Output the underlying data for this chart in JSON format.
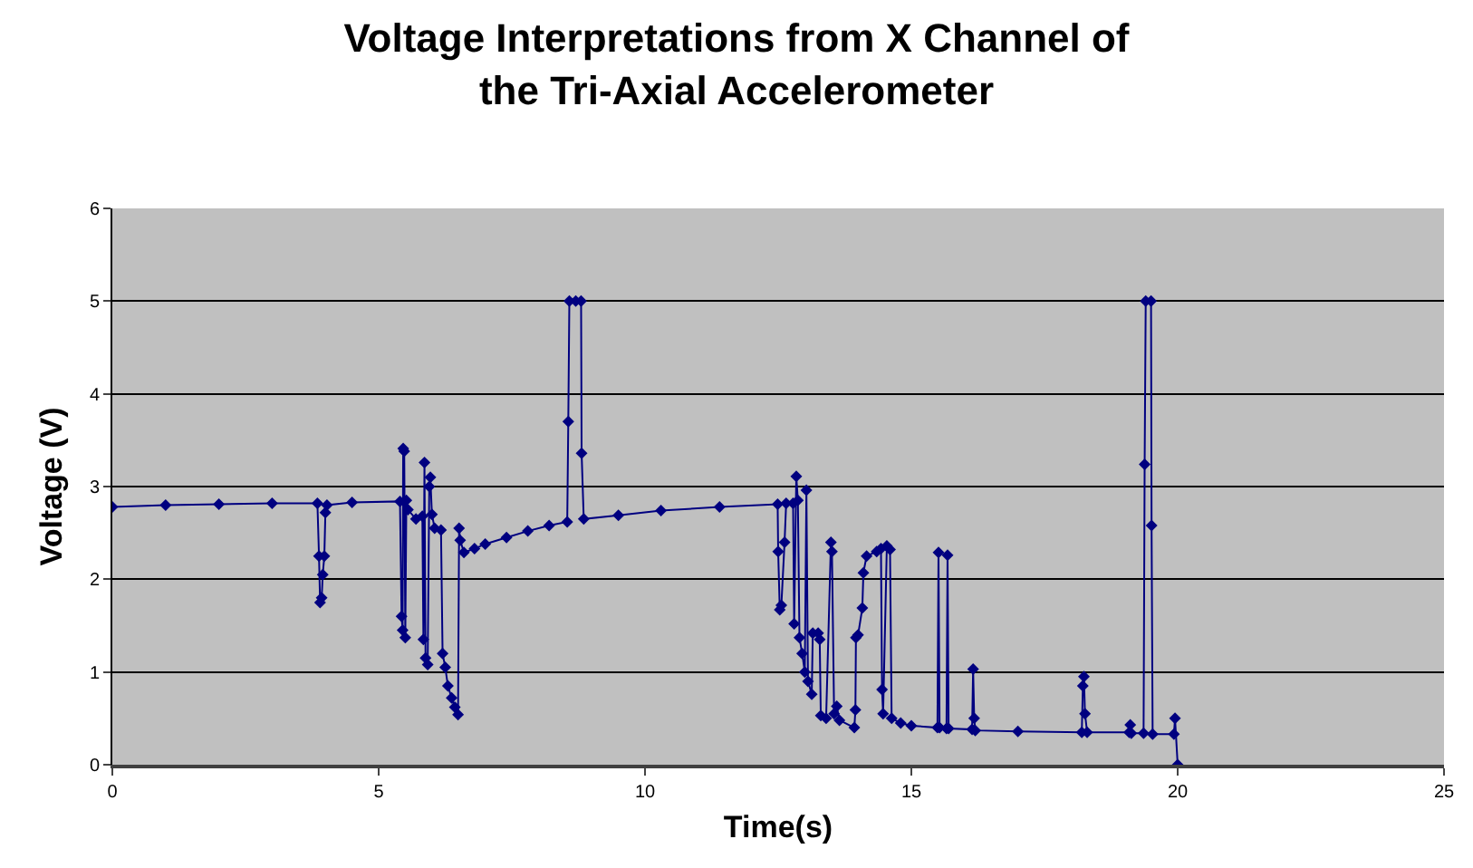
{
  "chart_data": {
    "type": "line",
    "title": "Voltage Interpretations from X Channel of\nthe Tri-Axial Accelerometer",
    "xlabel": "Time(s)",
    "ylabel": "Voltage (V)",
    "x": [
      0,
      1,
      2,
      3,
      3.85,
      3.88,
      3.9,
      3.93,
      3.95,
      3.98,
      4.0,
      4.03,
      4.5,
      5.4,
      5.43,
      5.45,
      5.46,
      5.48,
      5.5,
      5.52,
      5.55,
      5.7,
      5.82,
      5.84,
      5.86,
      5.88,
      5.92,
      5.95,
      5.97,
      6.0,
      6.05,
      6.17,
      6.2,
      6.25,
      6.3,
      6.37,
      6.43,
      6.49,
      6.51,
      6.53,
      6.6,
      6.8,
      7.0,
      7.4,
      7.8,
      8.2,
      8.54,
      8.56,
      8.58,
      8.7,
      8.8,
      8.81,
      8.85,
      9.5,
      10.3,
      11.4,
      12.49,
      12.5,
      12.53,
      12.56,
      12.62,
      12.65,
      12.78,
      12.8,
      12.84,
      12.87,
      12.9,
      12.95,
      13.0,
      13.03,
      13.06,
      13.13,
      13.15,
      13.25,
      13.28,
      13.3,
      13.4,
      13.49,
      13.51,
      13.55,
      13.6,
      13.65,
      13.93,
      13.95,
      13.96,
      14.0,
      14.08,
      14.1,
      14.16,
      14.35,
      14.43,
      14.45,
      14.47,
      14.54,
      14.6,
      14.63,
      14.8,
      15.0,
      15.49,
      15.51,
      15.53,
      15.66,
      15.68,
      15.7,
      16.14,
      16.16,
      16.18,
      16.2,
      17,
      18.2,
      18.22,
      18.24,
      18.26,
      18.3,
      19.09,
      19.11,
      19.13,
      19.36,
      19.38,
      19.4,
      19.5,
      19.51,
      19.53,
      19.93,
      19.95,
      20.0
    ],
    "series": [
      {
        "color": "#000080",
        "values": [
          2.78,
          2.8,
          2.81,
          2.82,
          2.82,
          2.25,
          1.75,
          1.8,
          2.05,
          2.25,
          2.72,
          2.8,
          2.83,
          2.84,
          1.6,
          1.45,
          3.41,
          3.38,
          1.37,
          2.85,
          2.75,
          2.65,
          2.68,
          1.35,
          3.26,
          1.15,
          1.08,
          3.0,
          3.1,
          2.7,
          2.55,
          2.53,
          1.2,
          1.05,
          0.85,
          0.72,
          0.62,
          0.54,
          2.55,
          2.42,
          2.29,
          2.33,
          2.38,
          2.45,
          2.52,
          2.58,
          2.62,
          3.7,
          5.0,
          5.0,
          5.0,
          3.36,
          2.65,
          2.69,
          2.74,
          2.78,
          2.81,
          2.3,
          1.67,
          1.72,
          2.4,
          2.82,
          2.82,
          1.52,
          3.11,
          2.85,
          1.37,
          1.2,
          1.0,
          2.96,
          0.9,
          0.76,
          1.42,
          1.42,
          1.35,
          0.53,
          0.5,
          2.4,
          2.3,
          0.55,
          0.63,
          0.48,
          0.4,
          0.59,
          1.37,
          1.4,
          1.69,
          2.07,
          2.25,
          2.3,
          2.33,
          0.81,
          0.55,
          2.36,
          2.32,
          0.5,
          0.45,
          0.42,
          0.4,
          2.29,
          0.4,
          0.39,
          2.26,
          0.39,
          0.38,
          1.03,
          0.5,
          0.37,
          0.36,
          0.35,
          0.85,
          0.95,
          0.55,
          0.35,
          0.35,
          0.43,
          0.34,
          0.34,
          3.24,
          5.0,
          5.0,
          2.58,
          0.33,
          0.33,
          0.5,
          0.0
        ]
      }
    ],
    "xlim": [
      0,
      25
    ],
    "xticks": [
      0,
      5,
      10,
      15,
      20,
      25
    ],
    "ylim": [
      0,
      6
    ],
    "yticks": [
      0,
      1,
      2,
      3,
      4,
      5,
      6
    ],
    "grid": "y",
    "marker": "diamond",
    "line_style": "solid"
  }
}
